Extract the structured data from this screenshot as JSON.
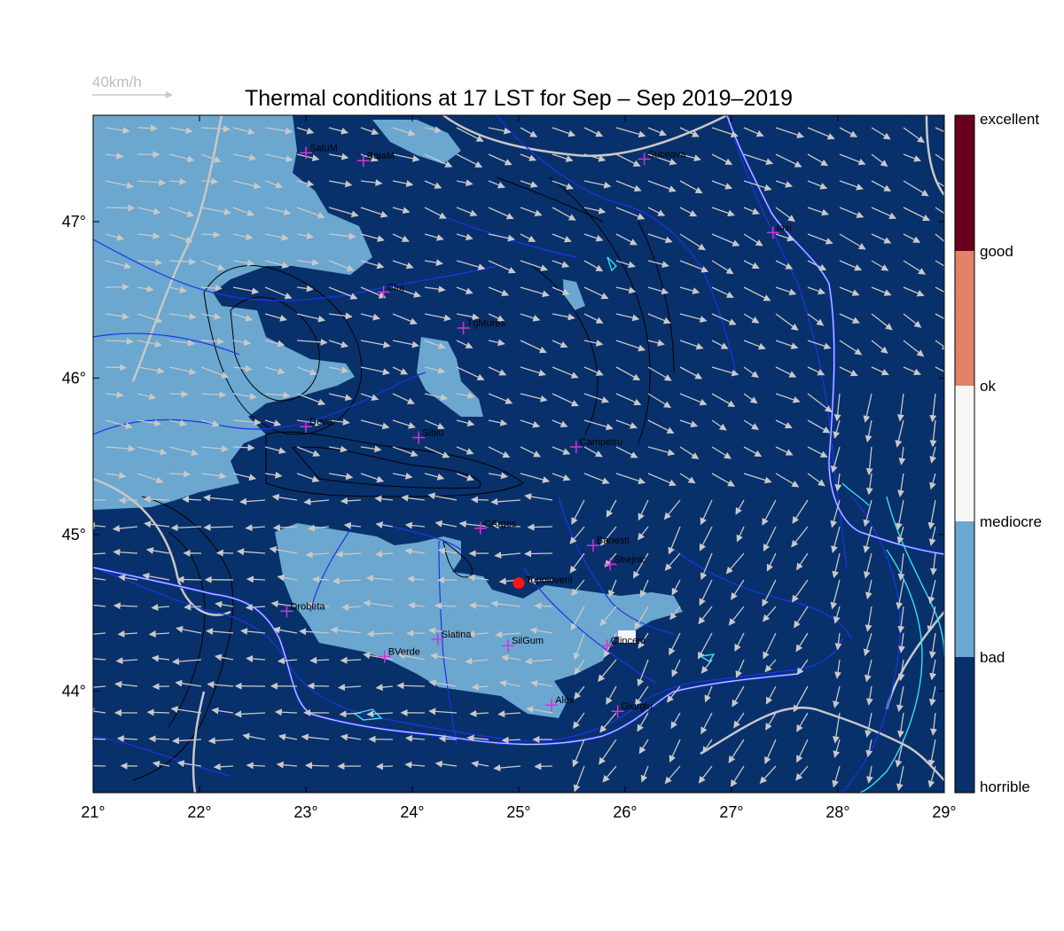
{
  "title": "Thermal conditions at 17 LST for Sep – Sep  2019–2019",
  "wind_key": {
    "label": "40km/h",
    "speed_kmh": 40
  },
  "axes": {
    "lon_ticks": [
      21,
      22,
      23,
      24,
      25,
      26,
      27,
      28,
      29
    ],
    "lat_ticks": [
      44,
      45,
      46,
      47
    ],
    "lon_range": [
      21,
      29
    ],
    "lat_range": [
      43.35,
      47.68
    ],
    "degree_symbol": "°"
  },
  "legend": {
    "placement": "right",
    "classes": [
      {
        "label": "horrible",
        "color": "#08306b"
      },
      {
        "label": "bad",
        "color": "#6ba7cf"
      },
      {
        "label": "mediocre",
        "color": "#f7f7f7"
      },
      {
        "label": "ok",
        "color": "#e08366"
      },
      {
        "label": "good",
        "color": "#67001f"
      },
      {
        "label": "excellent",
        "color": ""
      }
    ],
    "boundary_labels": [
      "horrible",
      "bad",
      "mediocre",
      "ok",
      "good",
      "excellent"
    ]
  },
  "colors": {
    "horrible": "#08306b",
    "bad": "#6ba7cf",
    "mediocre": "#f7f7f7",
    "rivers": "#1c34e6",
    "lakes": "#34e0e8",
    "roads": "#c8c8c8",
    "terrain": "#000000",
    "station_marker": "#d633d6",
    "target_marker": "#ff1414",
    "wind_arrows": "#c8c8c8"
  },
  "stations": [
    {
      "name": "SatuM",
      "lon": 23.0,
      "lat": 47.44
    },
    {
      "name": "BaiaM",
      "lon": 23.54,
      "lat": 47.39
    },
    {
      "name": "Suceava",
      "lon": 26.18,
      "lat": 47.4
    },
    {
      "name": "Iasi",
      "lon": 27.39,
      "lat": 46.93
    },
    {
      "name": "Cluj",
      "lon": 23.73,
      "lat": 46.55
    },
    {
      "name": "TgMures",
      "lon": 24.48,
      "lat": 46.32
    },
    {
      "name": "Deva",
      "lon": 23.0,
      "lat": 45.69
    },
    {
      "name": "Sibiu",
      "lon": 24.06,
      "lat": 45.62
    },
    {
      "name": "Campetru",
      "lon": 25.54,
      "lat": 45.56
    },
    {
      "name": "CArges",
      "lon": 24.64,
      "lat": 45.04
    },
    {
      "name": "Banesti",
      "lon": 25.7,
      "lat": 44.93
    },
    {
      "name": "Strejnic",
      "lon": 25.86,
      "lat": 44.81
    },
    {
      "name": "Drobeta",
      "lon": 22.82,
      "lat": 44.51
    },
    {
      "name": "Slatina",
      "lon": 24.24,
      "lat": 44.33
    },
    {
      "name": "SilGum",
      "lon": 24.9,
      "lat": 44.29
    },
    {
      "name": "Clinceni",
      "lon": 25.83,
      "lat": 44.29
    },
    {
      "name": "BVerde",
      "lon": 23.74,
      "lat": 44.22
    },
    {
      "name": "Alex",
      "lon": 25.31,
      "lat": 43.91
    },
    {
      "name": "Giurgiu",
      "lon": 25.93,
      "lat": 43.87
    }
  ],
  "target": {
    "name": "Topoloveni",
    "lon": 25.0,
    "lat": 44.69
  }
}
